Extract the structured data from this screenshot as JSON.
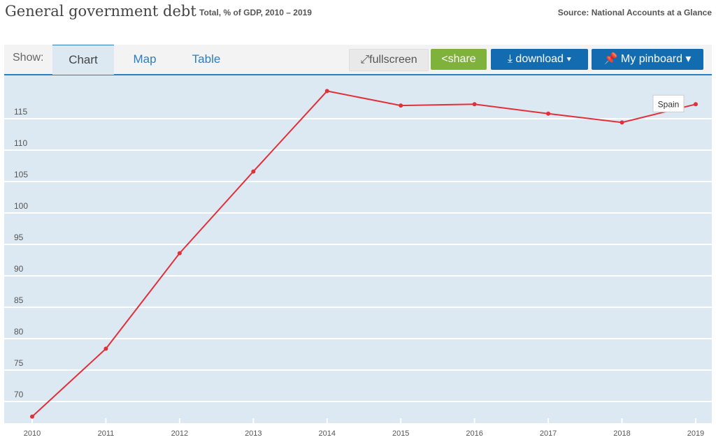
{
  "header": {
    "title": "General government debt",
    "subtitle": "Total, % of GDP, 2010 – 2019",
    "source": "Source: National Accounts at a Glance"
  },
  "toolbar": {
    "show_label": "Show:",
    "tabs": [
      {
        "label": "Chart",
        "active": true
      },
      {
        "label": "Map"
      },
      {
        "label": "Table"
      }
    ],
    "fullscreen": "fullscreen",
    "share": "share",
    "download": "download ▾",
    "pinboard": "My pinboard ▾"
  },
  "colors": {
    "line": "#e0303a",
    "share": "#7fb23a",
    "blue": "#136cb0",
    "plot_bg": "#dde9f2"
  },
  "chart_data": {
    "type": "line",
    "title": "",
    "xlabel": "",
    "ylabel": "",
    "x": [
      2010,
      2011,
      2012,
      2013,
      2014,
      2015,
      2016,
      2017,
      2018,
      2019
    ],
    "y_ticks": [
      70,
      75,
      80,
      85,
      90,
      95,
      100,
      105,
      110,
      115
    ],
    "ylim": [
      66.7,
      122
    ],
    "grid": true,
    "series": [
      {
        "name": "Spain",
        "values": [
          67.6,
          78.4,
          93.6,
          106.6,
          119.4,
          117.1,
          117.3,
          115.8,
          114.4,
          117.3
        ]
      }
    ]
  }
}
